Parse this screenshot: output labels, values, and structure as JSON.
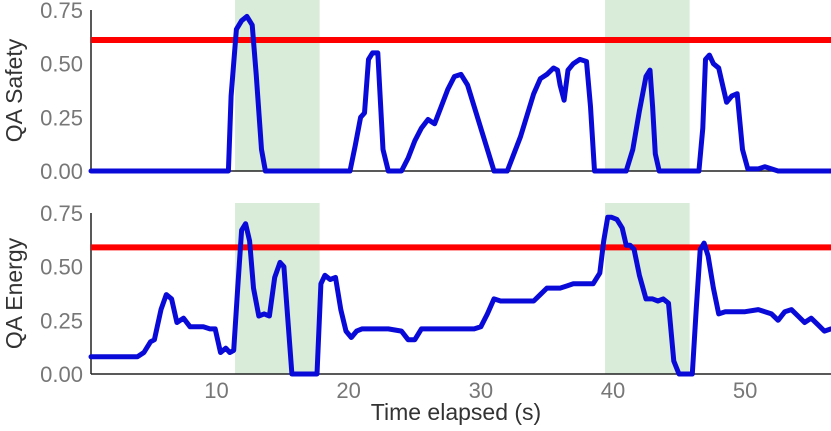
{
  "chart_data": {
    "type": "line",
    "shared_x_label": "Time elapsed (s)",
    "xlim": [
      0.5,
      56.5
    ],
    "xticks": [
      "10",
      "20",
      "30",
      "40",
      "50"
    ],
    "xtick_values": [
      10,
      20,
      30,
      40,
      50
    ],
    "colors": {
      "line": "#0a0ad8",
      "threshold": "#ff0000",
      "band": "#d9ebd9",
      "axis": "#222222",
      "tick_text": "#777777",
      "title_text": "#333333"
    },
    "shaded_intervals": [
      [
        11.4,
        17.8
      ],
      [
        39.4,
        45.8
      ]
    ],
    "panels": [
      {
        "ylabel": "QA Safety",
        "ylim": [
          0,
          0.75
        ],
        "yticks": [
          "0.00",
          "0.25",
          "0.50",
          "0.75"
        ],
        "ytick_values": [
          0,
          0.25,
          0.5,
          0.75
        ],
        "threshold": 0.61,
        "series": {
          "x": [
            0.5,
            10.9,
            11.1,
            11.5,
            11.9,
            12.3,
            12.7,
            13.0,
            13.4,
            13.7,
            14.0,
            20.1,
            20.5,
            20.9,
            21.2,
            21.5,
            21.8,
            22.2,
            22.6,
            23.0,
            24.0,
            24.5,
            25.0,
            25.5,
            26.0,
            26.5,
            27.0,
            27.5,
            28.0,
            28.5,
            29.0,
            29.5,
            30.0,
            30.5,
            31.0,
            31.5,
            32.0,
            32.5,
            33.0,
            33.5,
            34.0,
            34.5,
            35.0,
            35.5,
            35.8,
            36.0,
            36.3,
            36.6,
            37.0,
            37.5,
            38.0,
            38.3,
            38.6,
            39.0,
            39.5,
            40.0,
            40.5,
            41.0,
            41.5,
            42.0,
            42.5,
            42.8,
            43.0,
            43.2,
            43.5,
            46.5,
            46.8,
            47.0,
            47.3,
            47.6,
            48.0,
            48.3,
            48.6,
            49.0,
            49.4,
            49.8,
            50.2,
            50.5,
            51.0,
            51.5,
            52.0,
            52.5,
            53.0,
            56.5
          ],
          "y": [
            0,
            0,
            0.35,
            0.66,
            0.7,
            0.72,
            0.68,
            0.45,
            0.1,
            0,
            0,
            0,
            0.12,
            0.25,
            0.27,
            0.52,
            0.55,
            0.55,
            0.1,
            0,
            0,
            0.06,
            0.14,
            0.2,
            0.24,
            0.22,
            0.3,
            0.38,
            0.44,
            0.45,
            0.4,
            0.3,
            0.2,
            0.1,
            0,
            0,
            0,
            0.08,
            0.16,
            0.26,
            0.36,
            0.43,
            0.45,
            0.48,
            0.47,
            0.4,
            0.33,
            0.47,
            0.5,
            0.52,
            0.51,
            0.3,
            0,
            0,
            0,
            0,
            0,
            0,
            0.1,
            0.28,
            0.44,
            0.47,
            0.3,
            0.08,
            0,
            0,
            0.2,
            0.52,
            0.54,
            0.5,
            0.48,
            0.4,
            0.32,
            0.35,
            0.36,
            0.1,
            0.01,
            0.01,
            0.01,
            0.02,
            0.01,
            0,
            0,
            0
          ]
        }
      },
      {
        "ylabel": "QA Energy",
        "ylim": [
          0,
          0.75
        ],
        "yticks": [
          "0.00",
          "0.25",
          "0.50",
          "0.75"
        ],
        "ytick_values": [
          0,
          0.25,
          0.5,
          0.75
        ],
        "threshold": 0.59,
        "series": {
          "x": [
            0.5,
            2.0,
            3.0,
            4.0,
            4.5,
            5.0,
            5.3,
            5.8,
            6.2,
            6.6,
            7.0,
            7.5,
            8.0,
            9.0,
            9.5,
            9.9,
            10.3,
            10.7,
            11.0,
            11.3,
            11.6,
            11.9,
            12.2,
            12.5,
            12.8,
            13.2,
            13.6,
            14.0,
            14.4,
            14.8,
            15.1,
            15.4,
            15.7,
            16.0,
            16.3,
            17.2,
            17.6,
            17.9,
            18.2,
            18.6,
            19.0,
            19.4,
            19.8,
            20.2,
            20.6,
            21.0,
            22.0,
            23.0,
            24.0,
            24.5,
            25.0,
            25.5,
            26.0,
            27.0,
            28.5,
            29.5,
            30.0,
            30.5,
            31.0,
            31.5,
            32.0,
            33.0,
            34.0,
            34.5,
            35.0,
            35.5,
            36.0,
            36.5,
            37.0,
            38.0,
            38.5,
            39.0,
            39.3,
            39.6,
            39.9,
            40.3,
            40.7,
            41.0,
            41.3,
            41.6,
            42.0,
            42.5,
            43.0,
            43.4,
            43.8,
            44.2,
            44.6,
            45.0,
            45.5,
            46.0,
            46.3,
            46.6,
            46.9,
            47.2,
            47.6,
            48.0,
            48.5,
            49.0,
            50.0,
            51.0,
            51.5,
            52.0,
            52.5,
            53.0,
            53.5,
            54.0,
            54.5,
            55.0,
            55.5,
            56.0,
            56.5
          ],
          "y": [
            0.08,
            0.08,
            0.08,
            0.08,
            0.1,
            0.15,
            0.16,
            0.3,
            0.37,
            0.35,
            0.24,
            0.26,
            0.22,
            0.22,
            0.21,
            0.21,
            0.1,
            0.12,
            0.1,
            0.11,
            0.4,
            0.67,
            0.7,
            0.62,
            0.4,
            0.27,
            0.28,
            0.27,
            0.45,
            0.52,
            0.5,
            0.25,
            0,
            0,
            0,
            0,
            0,
            0.42,
            0.46,
            0.44,
            0.45,
            0.3,
            0.2,
            0.17,
            0.2,
            0.21,
            0.21,
            0.21,
            0.2,
            0.16,
            0.16,
            0.21,
            0.21,
            0.21,
            0.21,
            0.21,
            0.22,
            0.28,
            0.35,
            0.34,
            0.34,
            0.34,
            0.34,
            0.37,
            0.4,
            0.4,
            0.4,
            0.41,
            0.42,
            0.42,
            0.42,
            0.47,
            0.62,
            0.73,
            0.73,
            0.72,
            0.68,
            0.6,
            0.6,
            0.58,
            0.46,
            0.35,
            0.35,
            0.34,
            0.35,
            0.33,
            0.06,
            0,
            0,
            0,
            0.3,
            0.58,
            0.61,
            0.55,
            0.4,
            0.28,
            0.29,
            0.29,
            0.29,
            0.3,
            0.29,
            0.28,
            0.25,
            0.29,
            0.3,
            0.27,
            0.24,
            0.26,
            0.23,
            0.2,
            0.21
          ]
        }
      }
    ]
  }
}
